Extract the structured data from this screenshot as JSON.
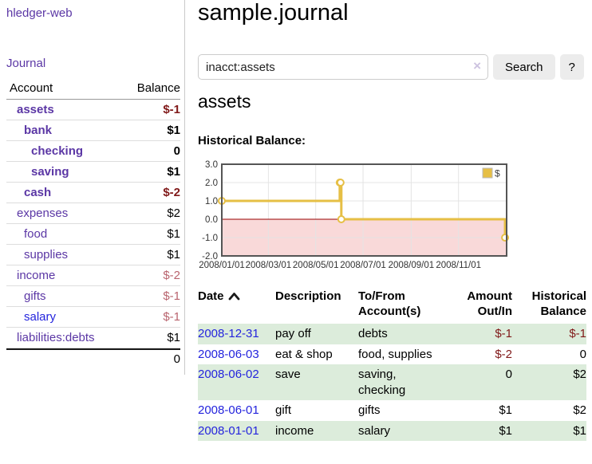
{
  "colors": {
    "link_purple": "#5b37a5",
    "link_blue": "#2424dd",
    "negative_strong": "#801919",
    "negative_muted": "#b9646e",
    "row_green": "#dcecdb",
    "chart_line": "#e6bf45"
  },
  "sidebar": {
    "brand": "hledger-web",
    "journal_link": "Journal",
    "table": {
      "account_header": "Account",
      "balance_header": "Balance",
      "rows": [
        {
          "name": "assets",
          "depth": 1,
          "bold": true,
          "link": "purple",
          "balance": "$-1",
          "balance_style": "negs"
        },
        {
          "name": "bank",
          "depth": 2,
          "bold": true,
          "link": "purple",
          "balance": "$1",
          "balance_style": "pos"
        },
        {
          "name": "checking",
          "depth": 3,
          "bold": true,
          "link": "purple",
          "balance": "0",
          "balance_style": "pos"
        },
        {
          "name": "saving",
          "depth": 3,
          "bold": true,
          "link": "purple",
          "balance": "$1",
          "balance_style": "pos"
        },
        {
          "name": "cash",
          "depth": 2,
          "bold": true,
          "link": "purple",
          "balance": "$-2",
          "balance_style": "negs"
        },
        {
          "name": "expenses",
          "depth": 1,
          "bold": false,
          "link": "purple",
          "balance": "$2",
          "balance_style": "pos"
        },
        {
          "name": "food",
          "depth": 2,
          "bold": false,
          "link": "purple",
          "balance": "$1",
          "balance_style": "pos"
        },
        {
          "name": "supplies",
          "depth": 2,
          "bold": false,
          "link": "purple",
          "balance": "$1",
          "balance_style": "pos"
        },
        {
          "name": "income",
          "depth": 1,
          "bold": false,
          "link": "purple",
          "balance": "$-2",
          "balance_style": "negm"
        },
        {
          "name": "gifts",
          "depth": 2,
          "bold": false,
          "link": "purple",
          "balance": "$-1",
          "balance_style": "negm"
        },
        {
          "name": "salary",
          "depth": 2,
          "bold": false,
          "link": "blue",
          "balance": "$-1",
          "balance_style": "negm"
        },
        {
          "name": "liabilities:debts",
          "depth": 1,
          "bold": false,
          "link": "purple",
          "balance": "$1",
          "balance_style": "pos"
        }
      ],
      "total": "0"
    }
  },
  "main": {
    "title": "sample.journal",
    "search": {
      "value": "inacct:assets",
      "clear_icon": "×",
      "button": "Search",
      "help_button": "?"
    },
    "section_title": "assets"
  },
  "chart_data": {
    "type": "line",
    "step": true,
    "title": "Historical Balance:",
    "series": [
      {
        "name": "$",
        "color": "#e6bf45",
        "points": [
          [
            "2008-01-01",
            1
          ],
          [
            "2008-06-01",
            2
          ],
          [
            "2008-06-02",
            2
          ],
          [
            "2008-06-03",
            0
          ],
          [
            "2008-12-31",
            -1
          ]
        ]
      }
    ],
    "xlim": [
      "2008-01-01",
      "2009-01-02"
    ],
    "ylim": [
      -2,
      3
    ],
    "y_ticks": [
      3.0,
      2.0,
      1.0,
      0.0,
      -1.0,
      -2.0
    ],
    "x_ticks": [
      "2008/01/01",
      "2008/03/01",
      "2008/05/01",
      "2008/07/01",
      "2008/09/01",
      "2008/11/01"
    ],
    "grid": true,
    "negative_region_fill": "#f9d9d9",
    "zero_line_color": "#990000",
    "legend": {
      "label": "$",
      "position": "top-right"
    }
  },
  "register": {
    "headers": [
      "Date",
      "Description",
      "To/From Account(s)",
      "Amount Out/In",
      "Historical Balance"
    ],
    "sort_indicator": "ascending",
    "rows": [
      {
        "date": "2008-12-31",
        "description": "pay off",
        "accounts": "debts",
        "amount": "$-1",
        "amount_negative": true,
        "balance": "$-1",
        "balance_negative": true,
        "green": true
      },
      {
        "date": "2008-06-03",
        "description": "eat & shop",
        "accounts": "food, supplies",
        "amount": "$-2",
        "amount_negative": true,
        "balance": "0",
        "balance_negative": false,
        "green": false
      },
      {
        "date": "2008-06-02",
        "description": "save",
        "accounts": "saving, checking",
        "amount": "0",
        "amount_negative": false,
        "balance": "$2",
        "balance_negative": false,
        "green": true
      },
      {
        "date": "2008-06-01",
        "description": "gift",
        "accounts": "gifts",
        "amount": "$1",
        "amount_negative": false,
        "balance": "$2",
        "balance_negative": false,
        "green": false
      },
      {
        "date": "2008-01-01",
        "description": "income",
        "accounts": "salary",
        "amount": "$1",
        "amount_negative": false,
        "balance": "$1",
        "balance_negative": false,
        "green": true
      }
    ]
  }
}
